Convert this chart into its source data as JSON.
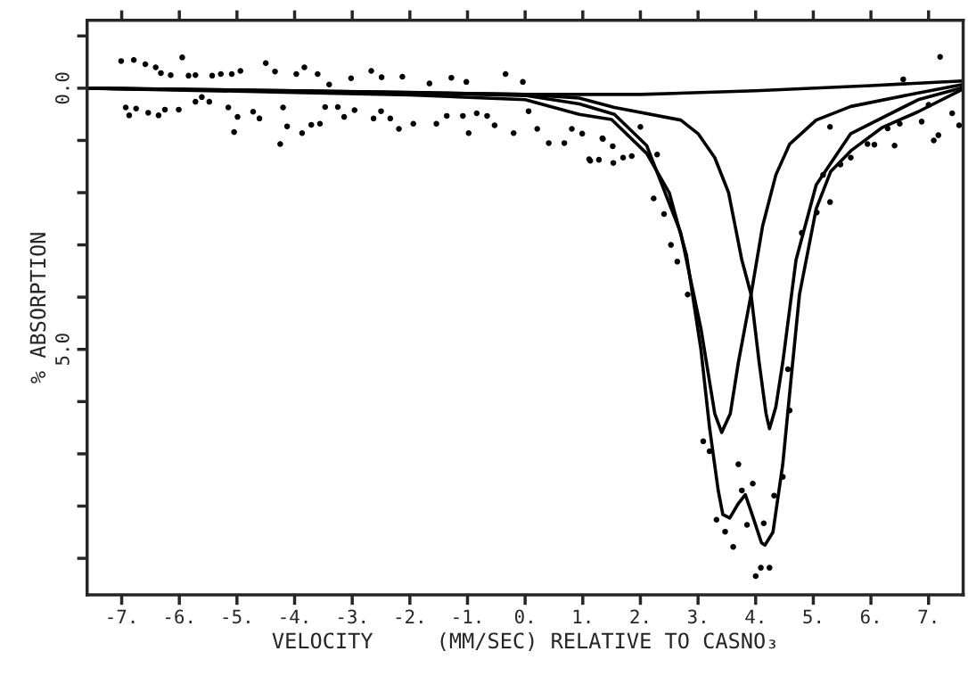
{
  "chart_data": {
    "type": "line",
    "xlabel": "VELOCITY     (MM/SEC) RELATIVE TO CASNO₃",
    "ylabel": "% ABSORPTION",
    "xlim": [
      -7.6,
      7.6
    ],
    "ylim": [
      9.7,
      -1.3
    ],
    "xticks": [
      {
        "value": -7,
        "label": "-7."
      },
      {
        "value": -6,
        "label": "-6."
      },
      {
        "value": -5,
        "label": "-5."
      },
      {
        "value": -4,
        "label": "-4."
      },
      {
        "value": -3,
        "label": "-3."
      },
      {
        "value": -2,
        "label": "-2."
      },
      {
        "value": -1,
        "label": "-1."
      },
      {
        "value": 0,
        "label": "0."
      },
      {
        "value": 1,
        "label": "1."
      },
      {
        "value": 2,
        "label": "2."
      },
      {
        "value": 3,
        "label": "3."
      },
      {
        "value": 4,
        "label": "4."
      },
      {
        "value": 5,
        "label": "5."
      },
      {
        "value": 6,
        "label": "6."
      },
      {
        "value": 7,
        "label": "7."
      }
    ],
    "yticks": [
      {
        "value": -1,
        "label": null
      },
      {
        "value": 0,
        "label": "0.0"
      },
      {
        "value": 1,
        "label": null
      },
      {
        "value": 2,
        "label": null
      },
      {
        "value": 3,
        "label": null
      },
      {
        "value": 4,
        "label": null
      },
      {
        "value": 5,
        "label": "5.0"
      },
      {
        "value": 6,
        "label": null
      },
      {
        "value": 7,
        "label": null
      },
      {
        "value": 8,
        "label": null
      },
      {
        "value": 9,
        "label": null
      }
    ],
    "grid": false,
    "legend": false,
    "series": [
      {
        "type": "scatter",
        "marker": "circle",
        "color": "#000000",
        "x": [
          -7.01,
          -6.79,
          -6.59,
          -6.41,
          -6.32,
          -6.15,
          -5.95,
          -5.84,
          -5.72,
          -5.43,
          -5.28,
          -5.09,
          -4.94,
          -4.5,
          -4.34,
          -3.97,
          -3.83,
          -3.6,
          -3.4,
          -3.02,
          -2.67,
          -2.49,
          -2.13,
          -1.66,
          -1.28,
          -1.02,
          -0.34,
          -0.04,
          -6.93,
          -6.87,
          -6.75,
          -6.54,
          -6.36,
          -6.25,
          -6.01,
          -5.72,
          -5.61,
          -5.48,
          -5.15,
          -5.05,
          -4.99,
          -4.72,
          -4.61,
          -4.25,
          -4.2,
          -4.13,
          -3.87,
          -3.71,
          -3.56,
          -3.47,
          -3.25,
          -3.14,
          -2.96,
          -2.63,
          -2.5,
          -2.34,
          -2.19,
          -1.94,
          -1.54,
          -1.36,
          -1.08,
          -0.98,
          -0.84,
          -0.66,
          -0.53,
          -0.2,
          0.06,
          0.21,
          0.41,
          0.68,
          0.81,
          1.13,
          1.28,
          1.34,
          1.52,
          2.23,
          2.41,
          2.53,
          2.64,
          2.82,
          3.09,
          3.2,
          3.32,
          3.47,
          3.61,
          3.7,
          3.76,
          3.85,
          3.95,
          4.0,
          4.09,
          4.24,
          4.14,
          4.47,
          4.32,
          4.59,
          4.56,
          4.8,
          5.06,
          5.29,
          5.17,
          5.47,
          5.65,
          5.94,
          6.06,
          6.41,
          6.29,
          6.5,
          6.88,
          7.09,
          7.17,
          7.41,
          7.53,
          7.0,
          6.56,
          7.2,
          5.29,
          1.11,
          1.53,
          1.7,
          1.85,
          1.35,
          0.99,
          2.0,
          2.29
        ],
        "values": [
          -0.52,
          -0.54,
          -0.46,
          -0.4,
          -0.29,
          -0.25,
          -0.59,
          -0.24,
          -0.25,
          -0.24,
          -0.27,
          -0.27,
          -0.33,
          -0.48,
          -0.32,
          -0.27,
          -0.4,
          -0.27,
          -0.07,
          -0.19,
          -0.33,
          -0.21,
          -0.22,
          -0.09,
          -0.2,
          -0.12,
          -0.27,
          -0.12,
          0.37,
          0.52,
          0.39,
          0.47,
          0.52,
          0.41,
          0.41,
          0.26,
          0.17,
          0.26,
          0.37,
          0.84,
          0.55,
          0.45,
          0.58,
          1.07,
          0.37,
          0.73,
          0.86,
          0.7,
          0.68,
          0.36,
          0.36,
          0.55,
          0.42,
          0.58,
          0.44,
          0.58,
          0.78,
          0.68,
          0.68,
          0.53,
          0.53,
          0.86,
          0.48,
          0.53,
          0.71,
          0.86,
          0.44,
          0.78,
          1.05,
          1.05,
          0.78,
          1.39,
          1.37,
          0.96,
          1.11,
          2.11,
          2.41,
          3.0,
          3.32,
          3.95,
          6.76,
          6.95,
          8.26,
          8.49,
          8.78,
          7.2,
          7.7,
          8.36,
          7.57,
          9.34,
          9.18,
          9.18,
          8.33,
          7.44,
          7.8,
          6.17,
          5.38,
          2.77,
          2.38,
          2.18,
          1.66,
          1.46,
          1.33,
          1.07,
          1.08,
          1.1,
          0.77,
          0.68,
          0.64,
          1.0,
          0.9,
          0.48,
          0.71,
          0.32,
          -0.17,
          -0.6,
          0.74,
          1.36,
          1.43,
          1.33,
          1.3,
          0.97,
          0.87,
          0.74,
          1.27
        ]
      },
      {
        "marker": "none",
        "line_style": "solid",
        "color": "#000000",
        "x": [
          -7.6,
          -4,
          0,
          2,
          4,
          6,
          7.6
        ],
        "values": [
          0.0,
          0.05,
          0.12,
          0.12,
          0.05,
          -0.05,
          -0.14
        ]
      },
      {
        "marker": "none",
        "line_style": "solid",
        "color": "#000000",
        "x": [
          -7.6,
          -4,
          -2,
          0,
          0.94,
          1.55,
          2.11,
          2.7,
          3.05,
          3.29,
          3.41,
          3.56,
          3.7,
          3.92,
          4.12,
          4.35,
          4.59,
          5.05,
          5.65,
          6.82,
          7.59
        ],
        "values": [
          0.0,
          0.06,
          0.09,
          0.14,
          0.3,
          0.5,
          1.1,
          2.77,
          4.6,
          6.23,
          6.59,
          6.23,
          5.25,
          3.95,
          2.64,
          1.66,
          1.07,
          0.61,
          0.35,
          0.09,
          -0.07
        ]
      },
      {
        "marker": "none",
        "line_style": "solid",
        "color": "#000000",
        "x": [
          -7.6,
          -4,
          -2,
          0,
          0.94,
          1.55,
          2.7,
          3.0,
          3.29,
          3.53,
          3.76,
          3.92,
          4.06,
          4.18,
          4.24,
          4.35,
          4.47,
          4.7,
          5.05,
          5.65,
          6.82,
          7.59
        ],
        "values": [
          0.0,
          0.05,
          0.08,
          0.12,
          0.19,
          0.37,
          0.61,
          0.87,
          1.33,
          2.0,
          3.29,
          3.95,
          5.25,
          6.23,
          6.52,
          6.1,
          5.25,
          3.29,
          1.85,
          0.87,
          0.22,
          -0.01
        ]
      },
      {
        "marker": "none",
        "line_style": "solid",
        "color": "#000000",
        "x": [
          -7.6,
          -4,
          -2,
          0,
          0.94,
          1.5,
          2.11,
          2.5,
          2.8,
          3.05,
          3.2,
          3.35,
          3.43,
          3.55,
          3.7,
          3.82,
          3.95,
          4.1,
          4.16,
          4.3,
          4.47,
          4.62,
          4.76,
          5.05,
          5.3,
          5.65,
          6.2,
          6.82,
          7.59
        ],
        "values": [
          0.0,
          0.08,
          0.13,
          0.22,
          0.5,
          0.6,
          1.25,
          2.0,
          3.2,
          5.0,
          6.5,
          7.7,
          8.16,
          8.23,
          7.95,
          7.78,
          8.2,
          8.7,
          8.75,
          8.5,
          7.2,
          5.5,
          3.95,
          2.31,
          1.6,
          1.2,
          0.75,
          0.45,
          0.02
        ]
      }
    ]
  }
}
